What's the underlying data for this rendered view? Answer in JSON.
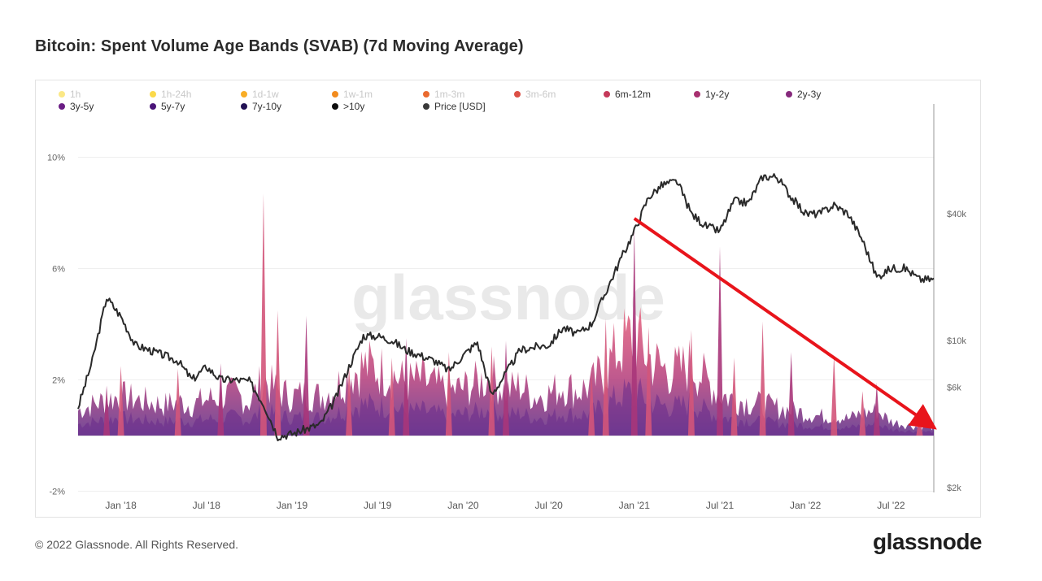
{
  "title": "Bitcoin: Spent Volume Age Bands (SVAB) (7d Moving Average)",
  "footer": {
    "copyright": "© 2022 Glassnode. All Rights Reserved.",
    "logo": "glassnode"
  },
  "watermark": "glassnode",
  "legend": [
    {
      "label": "1h",
      "color": "#fbe886",
      "active": false
    },
    {
      "label": "1h-24h",
      "color": "#fbd94a",
      "active": false
    },
    {
      "label": "1d-1w",
      "color": "#f8ad26",
      "active": false
    },
    {
      "label": "1w-1m",
      "color": "#f28c1e",
      "active": false
    },
    {
      "label": "1m-3m",
      "color": "#ea6a2f",
      "active": false
    },
    {
      "label": "3m-6m",
      "color": "#dc5046",
      "active": false
    },
    {
      "label": "6m-12m",
      "color": "#c5395a",
      "active": true
    },
    {
      "label": "1y-2y",
      "color": "#a83070",
      "active": true
    },
    {
      "label": "2y-3y",
      "color": "#86297c",
      "active": true
    },
    {
      "label": "3y-5y",
      "color": "#6a1d84",
      "active": true
    },
    {
      "label": "5y-7y",
      "color": "#4a1478",
      "active": true
    },
    {
      "label": "7y-10y",
      "color": "#221154",
      "active": true
    },
    {
      "label": ">10y",
      "color": "#0d0d0d",
      "active": true
    },
    {
      "label": "Price [USD]",
      "color": "#3a3a3a",
      "active": true
    }
  ],
  "chart_data": {
    "type": "area",
    "x_ticks": [
      "Jan '18",
      "Jul '18",
      "Jan '19",
      "Jul '19",
      "Jan '20",
      "Jul '20",
      "Jan '21",
      "Jul '21",
      "Jan '22",
      "Jul '22"
    ],
    "y_left_ticks": [
      "10%",
      "6%",
      "2%",
      "-2%"
    ],
    "y_left_values": [
      10,
      6,
      2,
      -2
    ],
    "y_right_ticks": [
      "$40k",
      "$10k",
      "$6k",
      "$2k"
    ],
    "y_right_values": [
      40000,
      10000,
      6000,
      2000
    ],
    "y_right_scale": "log",
    "ylim_left": [
      -2,
      11
    ],
    "ylim_right": [
      2000,
      70000
    ],
    "x_range": [
      "2017-10",
      "2022-10"
    ],
    "price_usd_monthly": [
      {
        "x": "2017-10",
        "y": 4800
      },
      {
        "x": "2017-11",
        "y": 8000
      },
      {
        "x": "2017-12",
        "y": 16000
      },
      {
        "x": "2018-01",
        "y": 13000
      },
      {
        "x": "2018-02",
        "y": 9500
      },
      {
        "x": "2018-03",
        "y": 9000
      },
      {
        "x": "2018-04",
        "y": 8500
      },
      {
        "x": "2018-05",
        "y": 8000
      },
      {
        "x": "2018-06",
        "y": 6500
      },
      {
        "x": "2018-07",
        "y": 7500
      },
      {
        "x": "2018-08",
        "y": 6500
      },
      {
        "x": "2018-09",
        "y": 6500
      },
      {
        "x": "2018-10",
        "y": 6400
      },
      {
        "x": "2018-11",
        "y": 5000
      },
      {
        "x": "2018-12",
        "y": 3500
      },
      {
        "x": "2019-01",
        "y": 3600
      },
      {
        "x": "2019-02",
        "y": 3800
      },
      {
        "x": "2019-03",
        "y": 4000
      },
      {
        "x": "2019-04",
        "y": 5200
      },
      {
        "x": "2019-05",
        "y": 7500
      },
      {
        "x": "2019-06",
        "y": 10500
      },
      {
        "x": "2019-07",
        "y": 10500
      },
      {
        "x": "2019-08",
        "y": 10000
      },
      {
        "x": "2019-09",
        "y": 9000
      },
      {
        "x": "2019-10",
        "y": 8500
      },
      {
        "x": "2019-11",
        "y": 8000
      },
      {
        "x": "2019-12",
        "y": 7200
      },
      {
        "x": "2020-01",
        "y": 8500
      },
      {
        "x": "2020-02",
        "y": 9800
      },
      {
        "x": "2020-03",
        "y": 5500
      },
      {
        "x": "2020-04",
        "y": 7000
      },
      {
        "x": "2020-05",
        "y": 9000
      },
      {
        "x": "2020-06",
        "y": 9300
      },
      {
        "x": "2020-07",
        "y": 9500
      },
      {
        "x": "2020-08",
        "y": 11500
      },
      {
        "x": "2020-09",
        "y": 10700
      },
      {
        "x": "2020-10",
        "y": 12000
      },
      {
        "x": "2020-11",
        "y": 17000
      },
      {
        "x": "2020-12",
        "y": 24000
      },
      {
        "x": "2021-01",
        "y": 33000
      },
      {
        "x": "2021-02",
        "y": 48000
      },
      {
        "x": "2021-03",
        "y": 55000
      },
      {
        "x": "2021-04",
        "y": 57000
      },
      {
        "x": "2021-05",
        "y": 40000
      },
      {
        "x": "2021-06",
        "y": 35000
      },
      {
        "x": "2021-07",
        "y": 33000
      },
      {
        "x": "2021-08",
        "y": 46000
      },
      {
        "x": "2021-09",
        "y": 45000
      },
      {
        "x": "2021-10",
        "y": 60000
      },
      {
        "x": "2021-11",
        "y": 60000
      },
      {
        "x": "2021-12",
        "y": 48000
      },
      {
        "x": "2022-01",
        "y": 40000
      },
      {
        "x": "2022-02",
        "y": 40000
      },
      {
        "x": "2022-03",
        "y": 44000
      },
      {
        "x": "2022-04",
        "y": 40000
      },
      {
        "x": "2022-05",
        "y": 30000
      },
      {
        "x": "2022-06",
        "y": 20000
      },
      {
        "x": "2022-07",
        "y": 22000
      },
      {
        "x": "2022-08",
        "y": 22000
      },
      {
        "x": "2022-09",
        "y": 19500
      },
      {
        "x": "2022-10",
        "y": 19500
      }
    ],
    "svab_total_pct_monthly": [
      {
        "x": "2017-10",
        "y": 0.9
      },
      {
        "x": "2017-11",
        "y": 1.1
      },
      {
        "x": "2017-12",
        "y": 1.3
      },
      {
        "x": "2018-01",
        "y": 1.4
      },
      {
        "x": "2018-02",
        "y": 1.3
      },
      {
        "x": "2018-03",
        "y": 1.2
      },
      {
        "x": "2018-04",
        "y": 1.1
      },
      {
        "x": "2018-05",
        "y": 1.2
      },
      {
        "x": "2018-06",
        "y": 1.1
      },
      {
        "x": "2018-07",
        "y": 1.3
      },
      {
        "x": "2018-08",
        "y": 1.4
      },
      {
        "x": "2018-09",
        "y": 1.5
      },
      {
        "x": "2018-10",
        "y": 1.2
      },
      {
        "x": "2018-11",
        "y": 2.0
      },
      {
        "x": "2018-12",
        "y": 1.6
      },
      {
        "x": "2019-01",
        "y": 1.4
      },
      {
        "x": "2019-02",
        "y": 1.5
      },
      {
        "x": "2019-03",
        "y": 1.4
      },
      {
        "x": "2019-04",
        "y": 1.7
      },
      {
        "x": "2019-05",
        "y": 2.2
      },
      {
        "x": "2019-06",
        "y": 2.5
      },
      {
        "x": "2019-07",
        "y": 2.4
      },
      {
        "x": "2019-08",
        "y": 2.2
      },
      {
        "x": "2019-09",
        "y": 1.9
      },
      {
        "x": "2019-10",
        "y": 2.0
      },
      {
        "x": "2019-11",
        "y": 1.8
      },
      {
        "x": "2019-12",
        "y": 1.6
      },
      {
        "x": "2020-01",
        "y": 1.7
      },
      {
        "x": "2020-02",
        "y": 1.9
      },
      {
        "x": "2020-03",
        "y": 2.1
      },
      {
        "x": "2020-04",
        "y": 1.6
      },
      {
        "x": "2020-05",
        "y": 1.8
      },
      {
        "x": "2020-06",
        "y": 1.4
      },
      {
        "x": "2020-07",
        "y": 1.5
      },
      {
        "x": "2020-08",
        "y": 1.8
      },
      {
        "x": "2020-09",
        "y": 1.6
      },
      {
        "x": "2020-10",
        "y": 1.8
      },
      {
        "x": "2020-11",
        "y": 2.4
      },
      {
        "x": "2020-12",
        "y": 3.2
      },
      {
        "x": "2021-01",
        "y": 3.6
      },
      {
        "x": "2021-02",
        "y": 2.8
      },
      {
        "x": "2021-03",
        "y": 2.4
      },
      {
        "x": "2021-04",
        "y": 2.3
      },
      {
        "x": "2021-05",
        "y": 2.6
      },
      {
        "x": "2021-06",
        "y": 2.0
      },
      {
        "x": "2021-07",
        "y": 1.5
      },
      {
        "x": "2021-08",
        "y": 1.3
      },
      {
        "x": "2021-09",
        "y": 1.2
      },
      {
        "x": "2021-10",
        "y": 1.1
      },
      {
        "x": "2021-11",
        "y": 1.0
      },
      {
        "x": "2021-12",
        "y": 0.9
      },
      {
        "x": "2022-01",
        "y": 0.8
      },
      {
        "x": "2022-02",
        "y": 0.7
      },
      {
        "x": "2022-03",
        "y": 0.7
      },
      {
        "x": "2022-04",
        "y": 0.6
      },
      {
        "x": "2022-05",
        "y": 0.8
      },
      {
        "x": "2022-06",
        "y": 0.9
      },
      {
        "x": "2022-07",
        "y": 0.5
      },
      {
        "x": "2022-08",
        "y": 0.4
      },
      {
        "x": "2022-09",
        "y": 0.3
      },
      {
        "x": "2022-10",
        "y": 0.3
      }
    ],
    "spikes_pct": [
      {
        "x": "2017-12",
        "y": 1.8
      },
      {
        "x": "2018-01",
        "y": 2.5
      },
      {
        "x": "2018-05",
        "y": 2.4
      },
      {
        "x": "2018-08",
        "y": 2.6
      },
      {
        "x": "2018-11",
        "y": 8.7
      },
      {
        "x": "2018-12",
        "y": 4.5
      },
      {
        "x": "2019-02",
        "y": 4.3
      },
      {
        "x": "2019-05",
        "y": 2.5
      },
      {
        "x": "2019-08",
        "y": 2.8
      },
      {
        "x": "2019-09",
        "y": 3.5
      },
      {
        "x": "2019-12",
        "y": 3.0
      },
      {
        "x": "2020-03",
        "y": 3.2
      },
      {
        "x": "2020-04",
        "y": 3.4
      },
      {
        "x": "2020-10",
        "y": 2.3
      },
      {
        "x": "2020-11",
        "y": 4.2
      },
      {
        "x": "2021-01",
        "y": 7.5
      },
      {
        "x": "2021-02",
        "y": 3.9
      },
      {
        "x": "2021-05",
        "y": 3.8
      },
      {
        "x": "2021-07",
        "y": 6.8
      },
      {
        "x": "2021-08",
        "y": 2.8
      },
      {
        "x": "2021-10",
        "y": 4.1
      },
      {
        "x": "2021-12",
        "y": 3.0
      },
      {
        "x": "2022-03",
        "y": 2.9
      },
      {
        "x": "2022-05",
        "y": 1.6
      },
      {
        "x": "2022-06",
        "y": 1.9
      },
      {
        "x": "2022-09",
        "y": 0.8
      }
    ],
    "trend_arrow": {
      "from": {
        "x": "2021-01",
        "y_pct": 7.8
      },
      "to": {
        "x": "2022-10",
        "y_pct": 0.3
      },
      "color": "#e8141b"
    }
  }
}
